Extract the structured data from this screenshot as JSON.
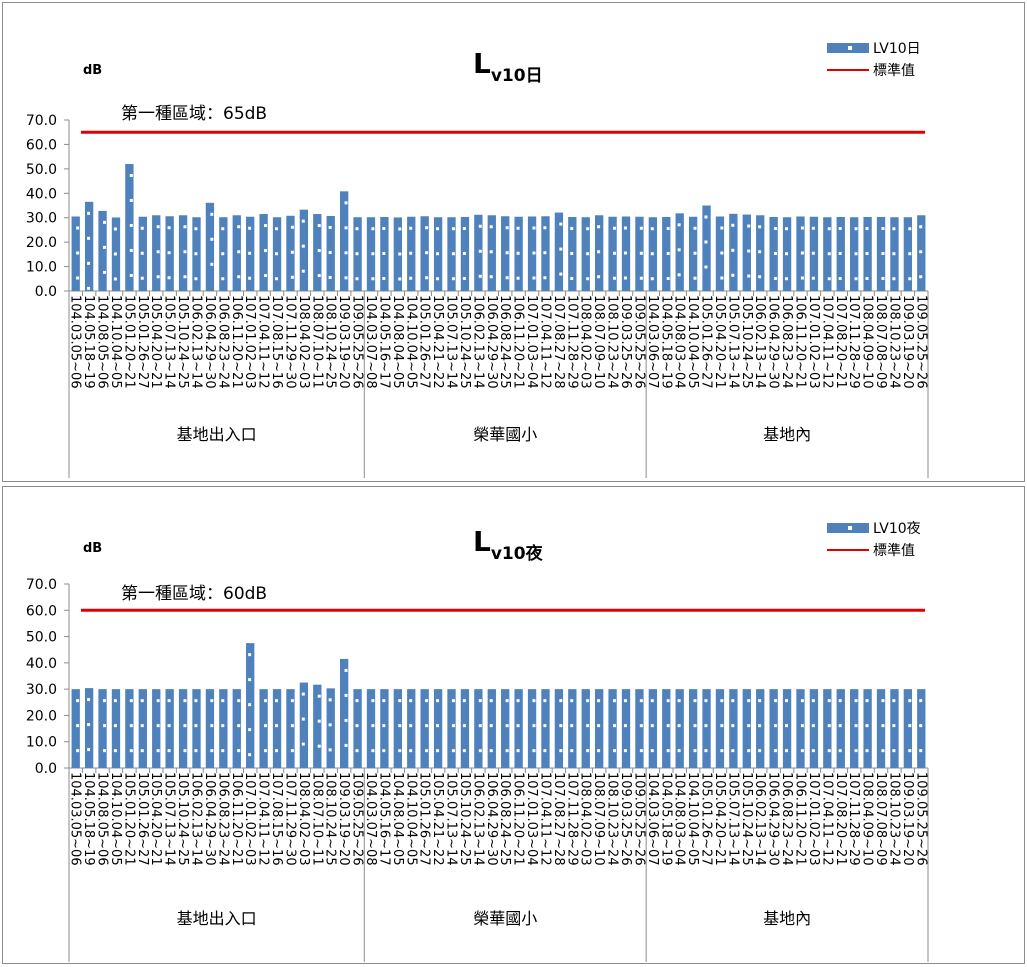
{
  "colors": {
    "bar": "#4f81bd",
    "bar_dot": "#ffffff",
    "standard_line": "#e00000",
    "axis": "#8c8c8c"
  },
  "chart_data": [
    {
      "type": "bar",
      "title_main": "L",
      "title_sub": "v10日",
      "unit": "dB",
      "threshold_label": "第一種區域：65dB",
      "legend": [
        "LV10日",
        "標準值"
      ],
      "standard_value": 65,
      "ylim": [
        0,
        70
      ],
      "y_ticks": [
        "0.0",
        "10.0",
        "20.0",
        "30.0",
        "40.0",
        "50.0",
        "60.0",
        "70.0"
      ],
      "groups": [
        {
          "name": "基地出入口",
          "count": 22
        },
        {
          "name": "榮華國小",
          "count": 21
        },
        {
          "name": "基地內",
          "count": 21
        }
      ],
      "categories": [
        "104.03.05~06",
        "104.05.18~19",
        "104.08.05~06",
        "104.10.04~05",
        "105.01.20~21",
        "105.01.26~27",
        "105.04.20~21",
        "105.07.13~14",
        "105.10.24~25",
        "106.02.13~14",
        "106.04.29~30",
        "106.08.23~24",
        "106.11.20~21",
        "107.01.02~03",
        "107.04.11~12",
        "107.08.15~16",
        "107.11.29~30",
        "108.04.02~03",
        "108.07.10~11",
        "108.10.24~25",
        "109.03.19~20",
        "109.05.25~26",
        "104.03.07~08",
        "104.05.16~17",
        "104.08.04~05",
        "104.10.04~05",
        "105.01.26~27",
        "105.04.21~22",
        "105.07.13~14",
        "105.10.24~25",
        "106.02.13~14",
        "106.04.29~30",
        "106.08.24~25",
        "106.11.20~21",
        "107.01.03~04",
        "107.04.11~12",
        "107.08.27~28",
        "107.11.28~29",
        "108.04.02~03",
        "108.07.09~10",
        "108.10.23~24",
        "109.03.25~26",
        "109.05.25~26",
        "104.03.06~07",
        "104.05.18~19",
        "104.08.03~04",
        "104.10.04~05",
        "105.01.26~27",
        "105.04.20~21",
        "105.07.13~14",
        "105.10.24~25",
        "106.02.13~14",
        "106.04.29~30",
        "106.08.23~24",
        "106.11.20~21",
        "107.01.02~03",
        "107.04.11~12",
        "107.08.20~21",
        "107.11.28~29",
        "108.04.09~10",
        "108.07.08~09",
        "108.10.23~24",
        "109.03.19~20",
        "109.05.25~26"
      ],
      "values": [
        30.5,
        36.5,
        32.8,
        30.1,
        52.0,
        30.4,
        31.0,
        30.6,
        31.0,
        30.2,
        36.1,
        30.2,
        31.0,
        30.4,
        31.5,
        30.2,
        30.8,
        33.3,
        31.5,
        30.7,
        40.8,
        30.2,
        30.2,
        30.3,
        30.1,
        30.4,
        30.6,
        30.2,
        30.2,
        30.3,
        31.2,
        31.0,
        30.6,
        30.4,
        30.5,
        30.6,
        32.1,
        30.3,
        30.2,
        31.0,
        30.4,
        30.5,
        30.4,
        30.2,
        30.3,
        31.8,
        30.4,
        35.0,
        30.5,
        31.6,
        31.3,
        31.0,
        30.3,
        30.2,
        30.5,
        30.4,
        30.2,
        30.3,
        30.2,
        30.3,
        30.3,
        30.2,
        30.2,
        31.0
      ]
    },
    {
      "type": "bar",
      "title_main": "L",
      "title_sub": "v10夜",
      "unit": "dB",
      "threshold_label": "第一種區域：60dB",
      "legend": [
        "LV10夜",
        "標準值"
      ],
      "standard_value": 60,
      "ylim": [
        0,
        70
      ],
      "y_ticks": [
        "0.0",
        "10.0",
        "20.0",
        "30.0",
        "40.0",
        "50.0",
        "60.0",
        "70.0"
      ],
      "groups": [
        {
          "name": "基地出入口",
          "count": 22
        },
        {
          "name": "榮華國小",
          "count": 21
        },
        {
          "name": "基地內",
          "count": 21
        }
      ],
      "categories": [
        "104.03.05~06",
        "104.05.18~19",
        "104.08.05~06",
        "104.10.04~05",
        "105.01.20~21",
        "105.01.26~27",
        "105.04.20~21",
        "105.07.13~14",
        "105.10.24~25",
        "106.02.13~14",
        "106.04.29~30",
        "106.08.23~24",
        "106.11.20~21",
        "107.01.02~03",
        "107.04.11~12",
        "107.08.15~16",
        "107.11.29~30",
        "108.04.02~03",
        "108.07.10~11",
        "108.10.24~25",
        "109.03.19~20",
        "109.05.25~26",
        "104.03.07~08",
        "104.05.16~17",
        "104.08.04~05",
        "104.10.04~05",
        "105.01.26~27",
        "105.04.21~22",
        "105.07.13~14",
        "105.10.24~25",
        "106.02.13~14",
        "106.04.29~30",
        "106.08.24~25",
        "106.11.20~21",
        "107.01.03~04",
        "107.04.11~12",
        "107.08.27~28",
        "107.11.28~29",
        "108.04.02~03",
        "108.07.09~10",
        "108.10.23~24",
        "109.03.25~26",
        "109.05.25~26",
        "104.03.06~07",
        "104.05.18~19",
        "104.08.03~04",
        "104.10.04~05",
        "105.01.26~27",
        "105.04.20~21",
        "105.07.13~14",
        "105.10.24~25",
        "106.02.13~14",
        "106.04.29~30",
        "106.08.23~24",
        "106.11.20~21",
        "107.01.02~03",
        "107.04.11~12",
        "107.08.20~21",
        "107.11.28~29",
        "108.04.09~10",
        "108.07.08~09",
        "108.10.23~24",
        "109.03.19~20",
        "109.05.25~26"
      ],
      "values": [
        30.0,
        30.4,
        30.0,
        30.0,
        30.0,
        30.0,
        30.0,
        30.0,
        30.0,
        30.0,
        30.0,
        30.0,
        30.0,
        47.5,
        30.0,
        30.0,
        30.0,
        32.5,
        31.7,
        30.3,
        41.5,
        30.0,
        30.0,
        30.0,
        30.0,
        30.0,
        30.0,
        30.0,
        30.0,
        30.0,
        30.0,
        30.0,
        30.0,
        30.0,
        30.0,
        30.0,
        30.0,
        30.0,
        30.0,
        30.0,
        30.0,
        30.0,
        30.0,
        30.0,
        30.0,
        30.0,
        30.0,
        30.0,
        30.0,
        30.0,
        30.0,
        30.0,
        30.0,
        30.0,
        30.0,
        30.0,
        30.0,
        30.0,
        30.0,
        30.0,
        30.0,
        30.0,
        30.0,
        30.0
      ]
    }
  ]
}
